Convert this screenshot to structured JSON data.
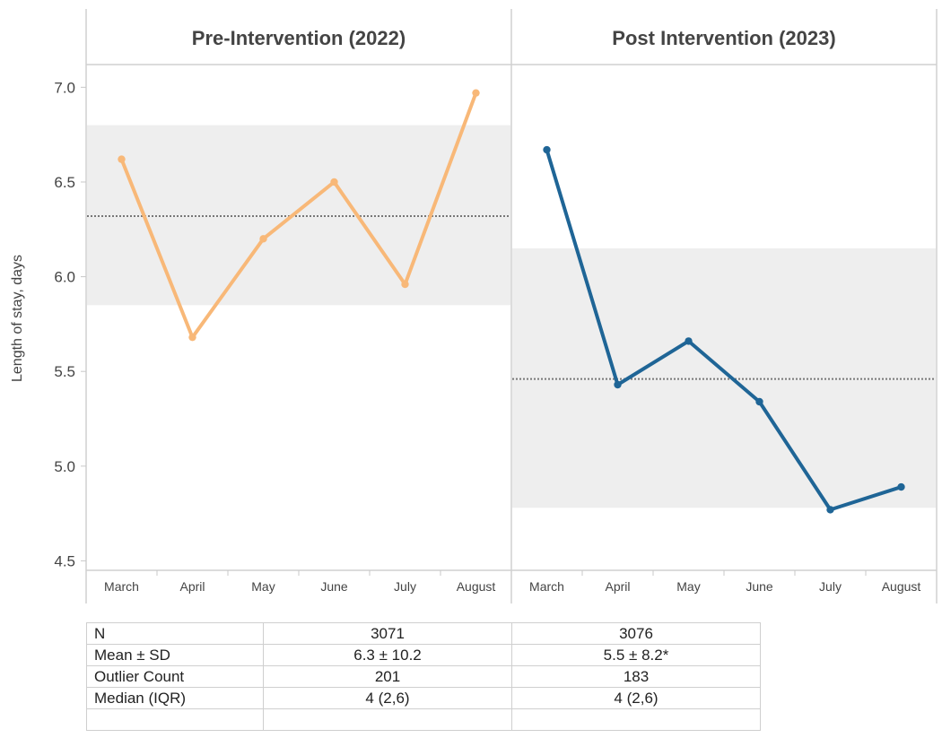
{
  "chart_data": {
    "type": "line",
    "ylabel": "Length of stay, days",
    "ylim": [
      4.45,
      7.12
    ],
    "yticks": [
      "7.0",
      "6.5",
      "6.0",
      "5.5",
      "5.0",
      "4.5"
    ],
    "categories": [
      "March",
      "April",
      "May",
      "June",
      "July",
      "August"
    ],
    "grid": false,
    "panels": [
      {
        "title": "Pre-Intervention (2022)",
        "color": "#F8B878",
        "values": [
          6.62,
          5.68,
          6.2,
          6.5,
          5.96,
          6.97
        ],
        "mean": 6.32,
        "band": [
          5.85,
          6.8
        ]
      },
      {
        "title": "Post Intervention (2023)",
        "color": "#1F6596",
        "values": [
          6.67,
          5.43,
          5.66,
          5.34,
          4.77,
          4.89
        ],
        "mean": 5.46,
        "band": [
          4.78,
          6.15
        ]
      }
    ]
  },
  "table": {
    "rows": [
      [
        "N",
        "3071",
        "3076"
      ],
      [
        "Mean ± SD",
        "6.3 ± 10.2",
        "5.5 ± 8.2*"
      ],
      [
        "Outlier Count",
        "201",
        "183"
      ],
      [
        "Median (IQR)",
        "4 (2,6)",
        "4 (2,6)"
      ],
      [
        "",
        "",
        ""
      ]
    ]
  }
}
